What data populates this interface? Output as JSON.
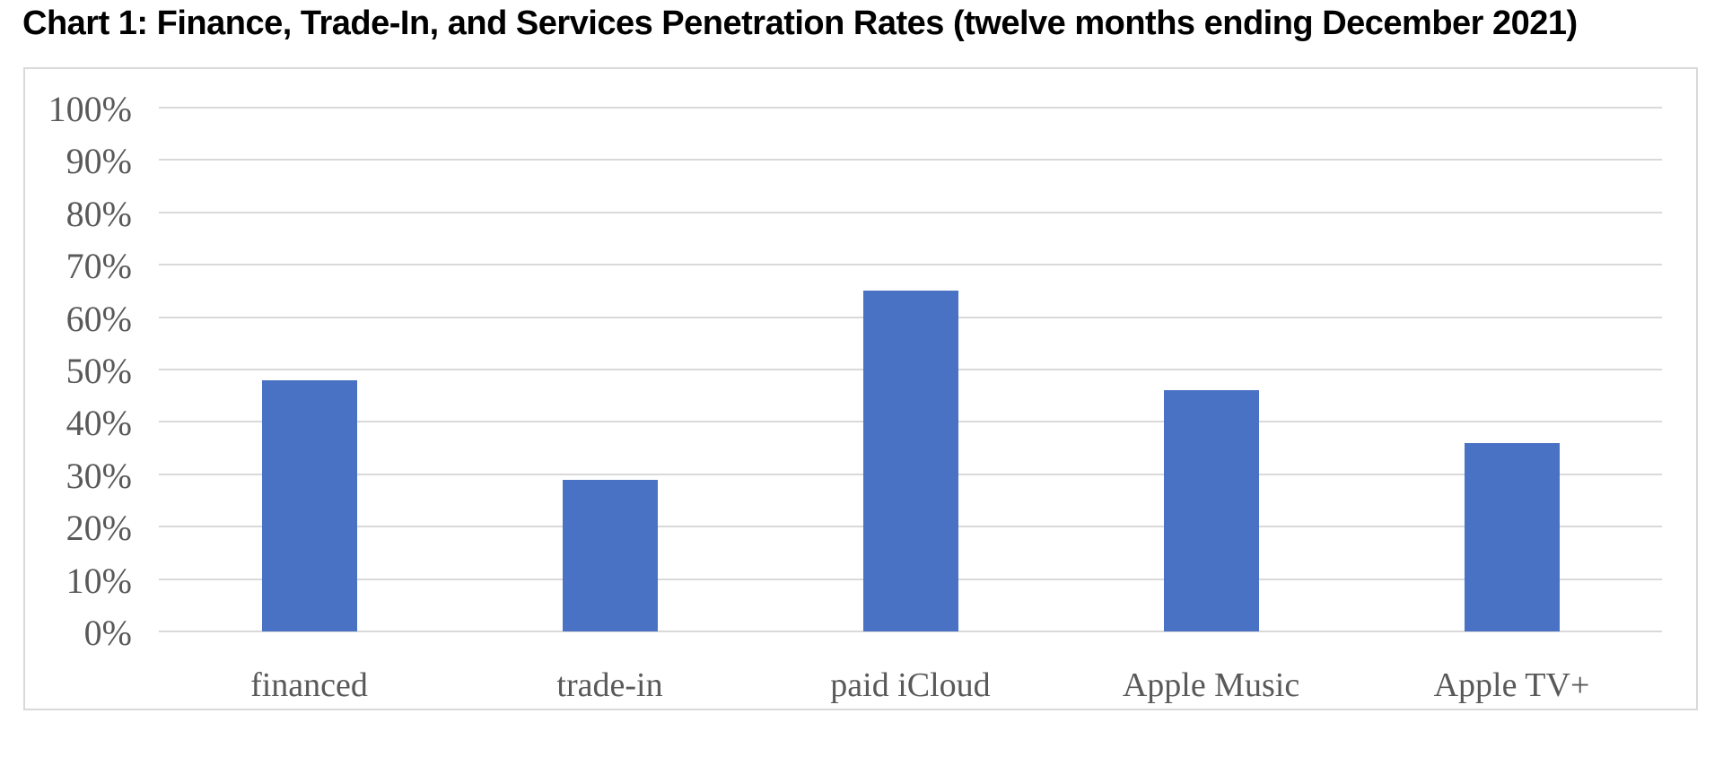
{
  "chart_data": {
    "type": "bar",
    "title": "Chart 1: Finance, Trade-In, and Services Penetration Rates (twelve months ending December 2021)",
    "categories": [
      "financed",
      "trade-in",
      "paid iCloud",
      "Apple Music",
      "Apple TV+"
    ],
    "values": [
      48,
      29,
      65,
      46,
      36
    ],
    "unit": "%",
    "xlabel": "",
    "ylabel": "",
    "ylim": [
      0,
      100
    ],
    "ytick_step": 10,
    "ytick_labels": [
      "100%",
      "90%",
      "80%",
      "70%",
      "60%",
      "50%",
      "40%",
      "30%",
      "20%",
      "10%",
      "0%"
    ],
    "grid": "horizontal-only",
    "legend": "none",
    "colors": {
      "bar": "#4a72c4",
      "gridline": "#d9d9d9",
      "frame_border": "#d9d9d9",
      "axis_text": "#595959",
      "title_text": "#000000",
      "background": "#ffffff"
    }
  }
}
